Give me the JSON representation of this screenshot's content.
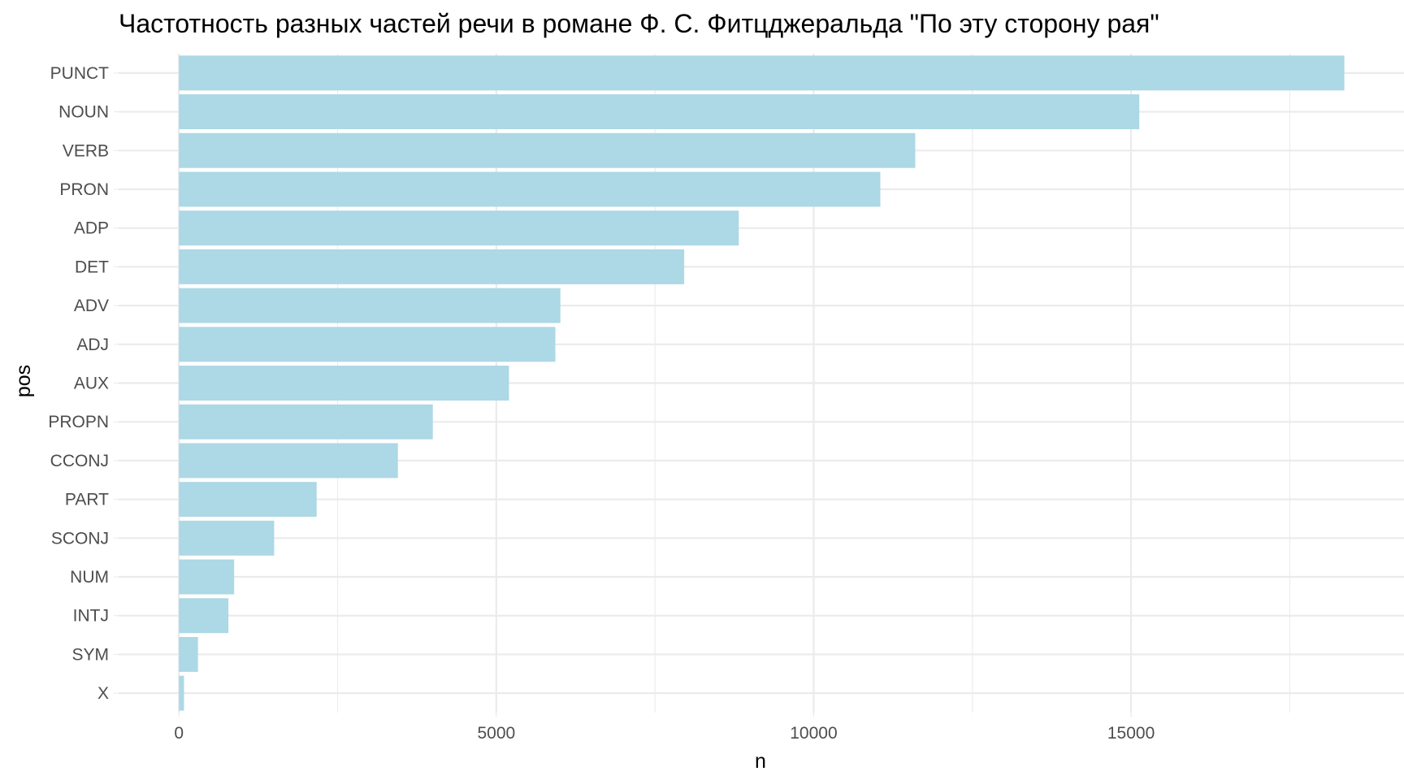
{
  "chart_data": {
    "type": "bar",
    "orientation": "horizontal",
    "title": "Частотность разных частей речи в романе Ф. С. Фитцджеральда \"По эту сторону рая\"",
    "xlabel": "n",
    "ylabel": "pos",
    "categories": [
      "PUNCT",
      "NOUN",
      "VERB",
      "PRON",
      "ADP",
      "DET",
      "ADV",
      "ADJ",
      "AUX",
      "PROPN",
      "CCONJ",
      "PART",
      "SCONJ",
      "NUM",
      "INTJ",
      "SYM",
      "X"
    ],
    "values": [
      18360,
      15130,
      11600,
      11050,
      8820,
      7960,
      6010,
      5930,
      5200,
      4000,
      3450,
      2170,
      1500,
      870,
      780,
      300,
      80
    ],
    "xlim": [
      -950,
      19300
    ],
    "x_ticks": [
      0,
      5000,
      10000,
      15000
    ],
    "x_tick_labels": [
      "0",
      "5000",
      "10000",
      "15000"
    ],
    "x_minor_ticks": [
      2500,
      7500,
      12500,
      17500
    ],
    "grid": true,
    "bar_color": "#add8e6"
  }
}
